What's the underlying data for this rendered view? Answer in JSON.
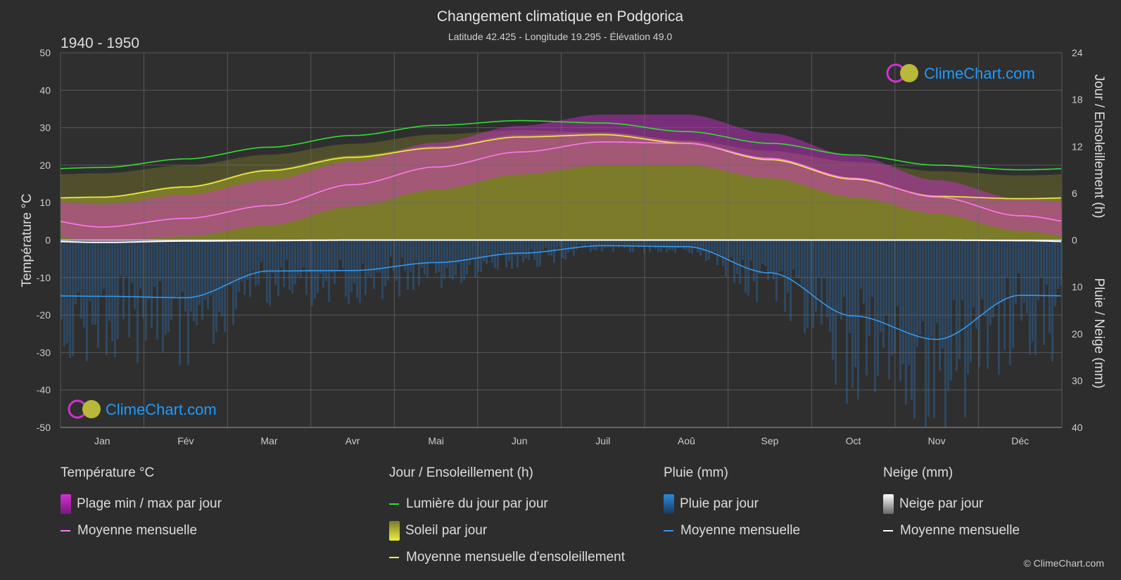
{
  "header": {
    "title": "Changement climatique en Podgorica",
    "subtitle": "Latitude 42.425 - Longitude 19.295 - Élévation 49.0",
    "period": "1940 - 1950"
  },
  "branding": {
    "logo_text": "ClimeChart.com",
    "copyright": "© ClimeChart.com"
  },
  "colors": {
    "background": "#2d2d2d",
    "grid": "#6a6a6a",
    "daylight": "#33dd33",
    "sunshine_fill": "#8a8a2a",
    "sunshine_mean": "#eeee44",
    "temp_range": "#d42fd4",
    "temp_mean": "#ff77ee",
    "rain": "#2a77c7",
    "rain_mean": "#3399ee",
    "snow_mean": "#ffffff",
    "logo_blue": "#1e9bff"
  },
  "legend": {
    "temperature": {
      "title": "Température °C",
      "items": [
        "Plage min / max par jour",
        "Moyenne mensuelle"
      ]
    },
    "sun": {
      "title": "Jour / Ensoleillement (h)",
      "items": [
        "Lumière du jour par jour",
        "Soleil par jour",
        "Moyenne mensuelle d'ensoleillement"
      ]
    },
    "rain": {
      "title": "Pluie (mm)",
      "items": [
        "Pluie par jour",
        "Moyenne mensuelle"
      ]
    },
    "snow": {
      "title": "Neige (mm)",
      "items": [
        "Neige par jour",
        "Moyenne mensuelle"
      ]
    }
  },
  "chart_data": {
    "type": "line",
    "title": "Changement climatique en Podgorica",
    "subtitle": "Latitude 42.425 - Longitude 19.295 - Élévation 49.0",
    "categories": [
      "Jan",
      "Fév",
      "Mar",
      "Avr",
      "Mai",
      "Jun",
      "Juil",
      "Aoû",
      "Sep",
      "Oct",
      "Nov",
      "Déc"
    ],
    "axes": {
      "left": {
        "label": "Température °C",
        "ylim": [
          -50,
          50
        ],
        "ticks": [
          50,
          40,
          30,
          20,
          10,
          0,
          -10,
          -20,
          -30,
          -40,
          -50
        ]
      },
      "right_top": {
        "label": "Jour / Ensoleillement (h)",
        "ylim": [
          0,
          24
        ],
        "ticks": [
          24,
          18,
          12,
          6,
          0
        ]
      },
      "right_bottom": {
        "label": "Pluie / Neige (mm)",
        "ylim": [
          0,
          40
        ],
        "ticks": [
          10,
          20,
          30,
          40
        ]
      }
    },
    "grid": true,
    "series": [
      {
        "name": "Lumière du jour par jour",
        "unit": "h",
        "values": [
          9.3,
          10.4,
          11.9,
          13.4,
          14.7,
          15.3,
          15.0,
          13.9,
          12.4,
          10.9,
          9.6,
          9.0
        ]
      },
      {
        "name": "Moyenne mensuelle d'ensoleillement",
        "unit": "h",
        "values": [
          5.5,
          6.8,
          8.9,
          10.6,
          11.8,
          13.2,
          13.5,
          12.4,
          10.3,
          7.8,
          5.6,
          5.3
        ]
      },
      {
        "name": "Température moyenne mensuelle",
        "unit": "°C",
        "values": [
          3.5,
          5.8,
          9.2,
          14.8,
          19.5,
          23.5,
          26.2,
          25.8,
          21.8,
          16.5,
          11.5,
          6.5
        ]
      },
      {
        "name": "Plage min / max par jour (min)",
        "unit": "°C",
        "values": [
          -0.5,
          1.0,
          4.0,
          9.0,
          13.5,
          17.5,
          20.0,
          20.0,
          16.5,
          11.5,
          7.0,
          2.5
        ]
      },
      {
        "name": "Plage min / max par jour (max)",
        "unit": "°C",
        "values": [
          9.5,
          12.0,
          16.0,
          21.0,
          26.0,
          30.5,
          33.5,
          33.5,
          28.5,
          22.5,
          16.0,
          11.0
        ]
      },
      {
        "name": "Pluie moyenne mensuelle",
        "unit": "mm",
        "values": [
          12.0,
          12.3,
          6.6,
          6.5,
          4.8,
          2.8,
          1.2,
          1.4,
          7.0,
          16.2,
          21.2,
          11.8
        ]
      },
      {
        "name": "Neige moyenne mensuelle",
        "unit": "mm",
        "values": [
          0.5,
          0.2,
          0.1,
          0.0,
          0.0,
          0.0,
          0.0,
          0.0,
          0.0,
          0.0,
          0.0,
          0.1
        ]
      }
    ]
  }
}
